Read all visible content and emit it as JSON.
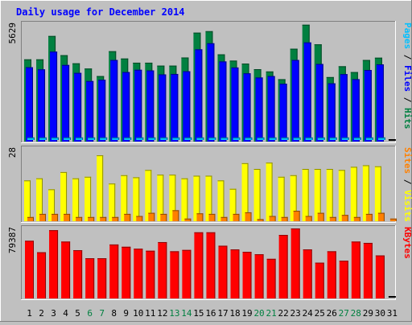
{
  "chart_data": {
    "type": "bar",
    "title": "Daily usage for December 2014",
    "categories": [
      "1",
      "2",
      "3",
      "4",
      "5",
      "6",
      "7",
      "8",
      "9",
      "10",
      "11",
      "12",
      "13",
      "14",
      "15",
      "16",
      "17",
      "18",
      "19",
      "20",
      "21",
      "22",
      "23",
      "24",
      "25",
      "26",
      "27",
      "28",
      "29",
      "30",
      "31"
    ],
    "weekend_days": [
      "6",
      "7",
      "13",
      "14",
      "20",
      "21",
      "27",
      "28"
    ],
    "panels": [
      {
        "id": "hits-files-pages",
        "ylabel_max": "5629",
        "ylim": [
          0,
          5629
        ],
        "legend": [
          {
            "text": "Pages",
            "color": "#00c0ff"
          },
          {
            "text": " / ",
            "color": "#000000"
          },
          {
            "text": "Files",
            "color": "#0000ff"
          },
          {
            "text": " / ",
            "color": "#000000"
          },
          {
            "text": "Hits",
            "color": "#008040"
          }
        ],
        "series": [
          {
            "name": "Hits",
            "color": "#008040",
            "values": [
              3940,
              3940,
              5060,
              4140,
              3750,
              3500,
              3140,
              4330,
              3980,
              3780,
              3780,
              3640,
              3640,
              4030,
              5220,
              5290,
              4180,
              3880,
              3740,
              3470,
              3360,
              2990,
              4450,
              5600,
              4660,
              3090,
              3610,
              3330,
              3910,
              4020,
              0
            ]
          },
          {
            "name": "Files",
            "color": "#0000ff",
            "values": [
              3560,
              3460,
              4310,
              3670,
              3290,
              2900,
              2960,
              3910,
              3330,
              3440,
              3410,
              3220,
              3240,
              3370,
              4420,
              4710,
              3840,
              3550,
              3270,
              3070,
              3140,
              2770,
              3910,
              4750,
              3720,
              2790,
              3230,
              2990,
              3430,
              3700,
              0
            ]
          },
          {
            "name": "Pages",
            "color": "#00c0ff",
            "values": [
              120,
              120,
              120,
              120,
              120,
              120,
              120,
              120,
              120,
              120,
              120,
              120,
              120,
              120,
              120,
              120,
              120,
              120,
              120,
              120,
              120,
              120,
              120,
              120,
              120,
              120,
              120,
              120,
              120,
              120,
              0
            ]
          }
        ]
      },
      {
        "id": "visits-sites",
        "ylabel_max": "28",
        "ylim": [
          0,
          28
        ],
        "legend": [
          {
            "text": "Sites",
            "color": "#ff8000"
          },
          {
            "text": " / ",
            "color": "#000000"
          },
          {
            "text": "Visits",
            "color": "#ffff00"
          }
        ],
        "series": [
          {
            "name": "Visits",
            "color": "#ffff00",
            "values": [
              15.6,
              16.4,
              12.2,
              18.8,
              16.4,
              17.0,
              25.2,
              14.4,
              17.6,
              16.8,
              19.6,
              17.8,
              17.8,
              16.4,
              17.4,
              17.4,
              15.6,
              12.4,
              22.2,
              20.0,
              22.4,
              17.0,
              17.6,
              20.0,
              20.0,
              20.0,
              19.6,
              20.8,
              21.4,
              21.0,
              0
            ]
          },
          {
            "name": "Sites",
            "color": "#ff8000",
            "values": [
              1.6,
              2.8,
              2.8,
              2.8,
              1.6,
              1.6,
              1.6,
              1.6,
              2.8,
              2.0,
              3.2,
              2.8,
              4.2,
              1.0,
              3.0,
              2.8,
              1.6,
              2.8,
              3.4,
              0.8,
              2.0,
              1.6,
              4.0,
              2.0,
              3.2,
              1.6,
              2.4,
              1.6,
              2.8,
              3.2,
              1.0
            ]
          }
        ]
      },
      {
        "id": "kbytes",
        "ylabel_max": "79387",
        "ylim": [
          0,
          79387
        ],
        "legend": [
          {
            "text": "KBytes",
            "color": "#ff0000"
          }
        ],
        "series": [
          {
            "name": "KBytes",
            "color": "#ff0000",
            "values": [
              65400,
              52400,
              77400,
              64500,
              54700,
              45600,
              45600,
              61200,
              58600,
              56400,
              54100,
              63900,
              53500,
              55000,
              75000,
              75000,
              59800,
              55600,
              52900,
              50100,
              44900,
              72000,
              79387,
              55600,
              40600,
              53500,
              42800,
              64500,
              63000,
              48800,
              0
            ]
          }
        ]
      }
    ]
  }
}
